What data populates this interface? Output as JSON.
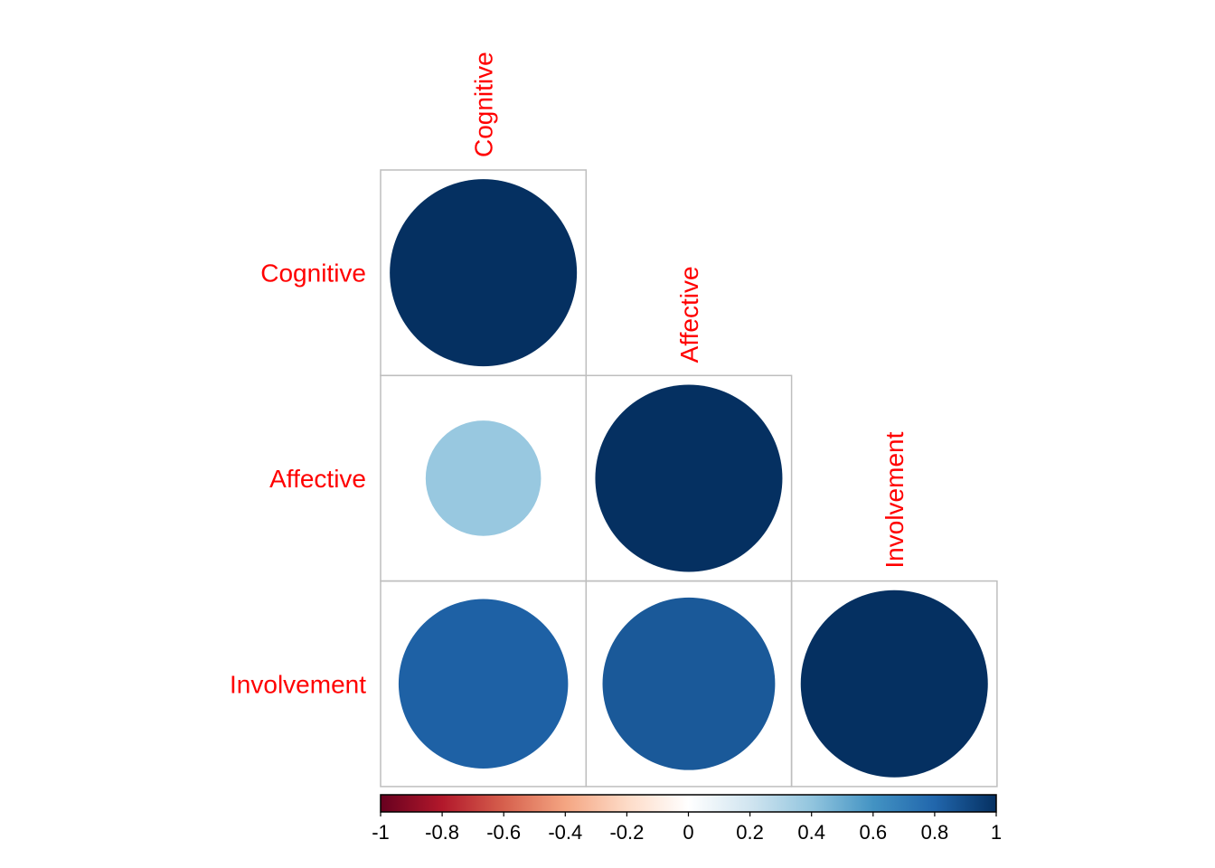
{
  "chart_data": {
    "type": "heatmap",
    "style": "correlation matrix, circle method, lower triangle",
    "variables": [
      "Cognitive",
      "Affective",
      "Involvement"
    ],
    "matrix": [
      [
        1.0,
        null,
        null
      ],
      [
        0.38,
        1.0,
        null
      ],
      [
        0.82,
        0.85,
        1.0
      ]
    ],
    "color_scale": {
      "range": [
        -1,
        1
      ],
      "stops": [
        "#67001F",
        "#B2182B",
        "#D6604D",
        "#F4A582",
        "#FDDBC7",
        "#FFFFFF",
        "#D1E5F0",
        "#92C5DE",
        "#4393C3",
        "#2166AC",
        "#053061"
      ],
      "ticks": [
        "-1",
        "-0.8",
        "-0.6",
        "-0.4",
        "-0.2",
        "0",
        "0.2",
        "0.4",
        "0.6",
        "0.8",
        "1"
      ]
    },
    "label_color": "#FF0000",
    "grid_color": "#BEBEBE",
    "legend_position": "bottom"
  }
}
